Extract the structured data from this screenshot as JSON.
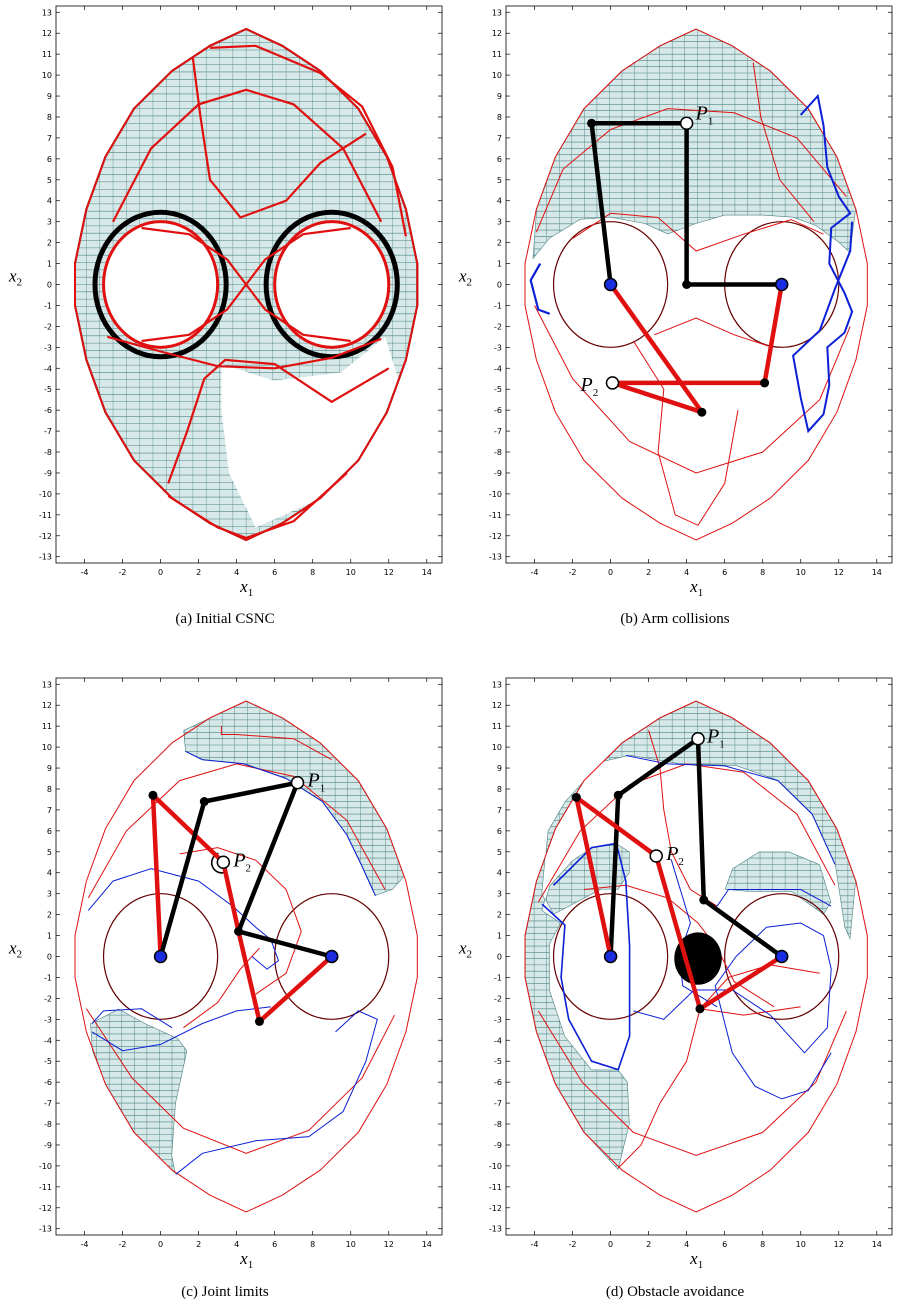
{
  "axes": {
    "x_label": "x",
    "x_sub": "1",
    "y_label": "x",
    "y_sub": "2",
    "x_ticks": [
      "-4",
      "-2",
      "0",
      "2",
      "4",
      "6",
      "8",
      "10",
      "12",
      "14"
    ],
    "y_ticks": [
      "13",
      "12",
      "11",
      "10",
      "9",
      "8",
      "7",
      "6",
      "5",
      "4",
      "3",
      "2",
      "1",
      "0",
      "-1",
      "-2",
      "-3",
      "-4",
      "-5",
      "-6",
      "-7",
      "-8",
      "-9",
      "-10",
      "-11",
      "-12",
      "-13"
    ],
    "x_range": [
      -5.5,
      14.8
    ],
    "y_range": [
      -13.3,
      13.3
    ]
  },
  "colors": {
    "region_fill": "#d7e8e8",
    "region_edge": "#4f8484",
    "red": "#e01010",
    "blue": "#0b1fd6",
    "black": "#000000",
    "joint_blue": "#1a2de0"
  },
  "panels": [
    {
      "id": "a",
      "caption": "(a)  Initial CSNC",
      "points": []
    },
    {
      "id": "b",
      "caption": "(b)  Arm collisions",
      "points": [
        {
          "name": "P",
          "sub": "1",
          "x": 4.0,
          "y": 7.7
        },
        {
          "name": "P",
          "sub": "2",
          "x": 0.1,
          "y": -4.7
        }
      ]
    },
    {
      "id": "c",
      "caption": "(c)  Joint limits",
      "points": [
        {
          "name": "P",
          "sub": "1",
          "x": 7.2,
          "y": 8.3
        },
        {
          "name": "P",
          "sub": "2",
          "x": 3.3,
          "y": 4.5
        }
      ]
    },
    {
      "id": "d",
      "caption": "(d)  Obstacle avoidance",
      "points": [
        {
          "name": "P",
          "sub": "1",
          "x": 4.6,
          "y": 10.4
        },
        {
          "name": "P",
          "sub": "2",
          "x": 2.4,
          "y": 4.8
        }
      ]
    }
  ]
}
